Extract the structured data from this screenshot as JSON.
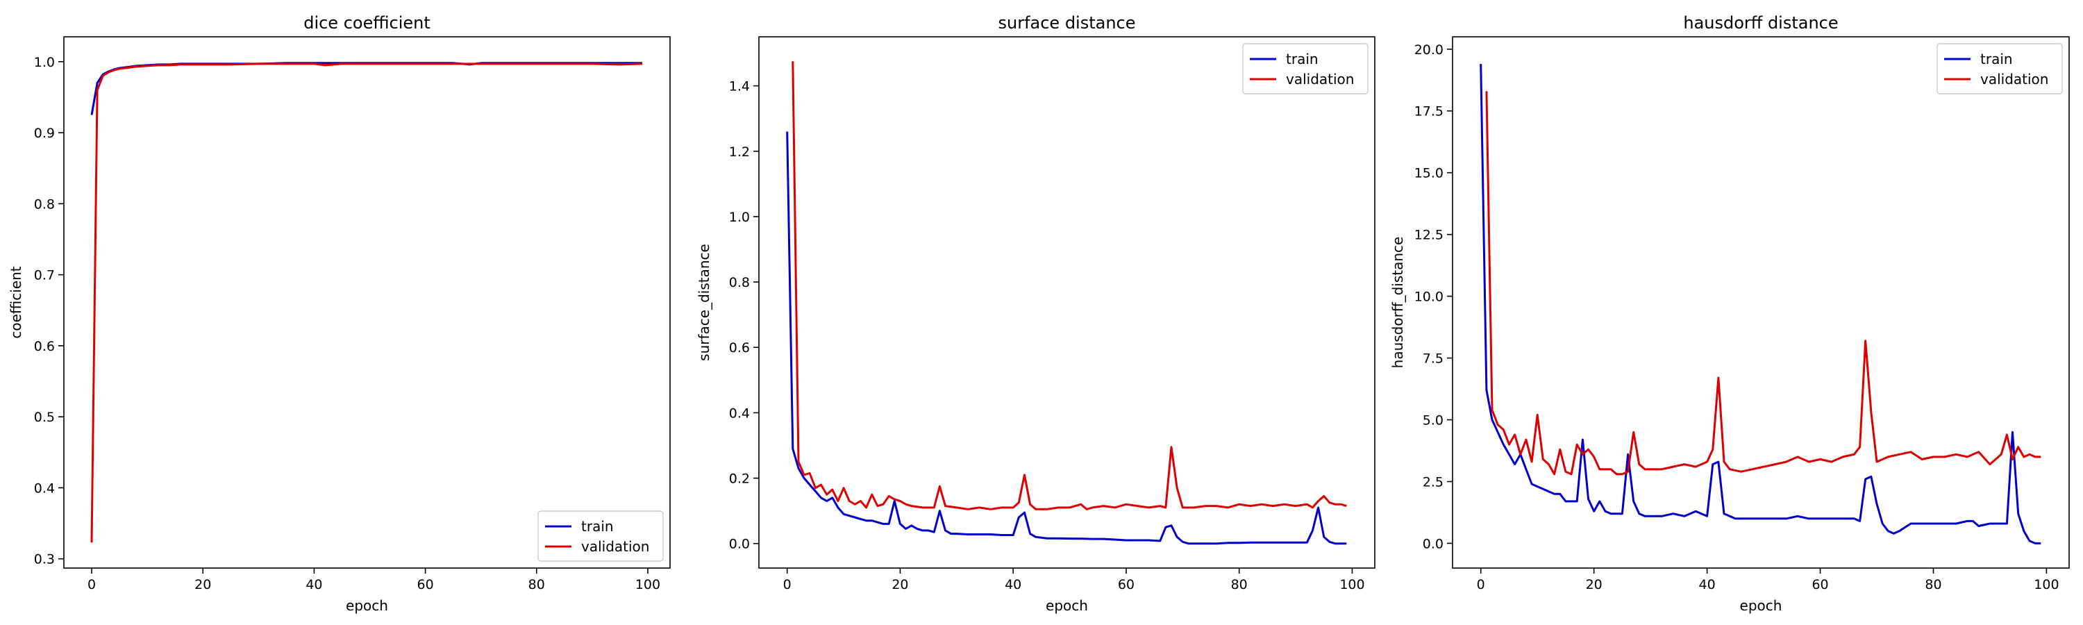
{
  "colors": {
    "train": "#0000cc",
    "validation": "#dd0000"
  },
  "chart_data": [
    {
      "type": "line",
      "title": "dice coefficient",
      "xlabel": "epoch",
      "ylabel": "coefficient",
      "xlim": [
        -5,
        104
      ],
      "ylim": [
        0.287,
        1.035
      ],
      "xticks": [
        0,
        20,
        40,
        60,
        80,
        100
      ],
      "yticks": [
        0.3,
        0.4,
        0.5,
        0.6,
        0.7,
        0.8,
        0.9,
        1.0
      ],
      "ytick_labels": [
        "0.3",
        "0.4",
        "0.5",
        "0.6",
        "0.7",
        "0.8",
        "0.9",
        "1.0"
      ],
      "grid": false,
      "legend": "lower-right",
      "series": [
        {
          "name": "train",
          "color": "#0000cc",
          "x": [
            0,
            1,
            2,
            3,
            4,
            5,
            6,
            7,
            8,
            10,
            12,
            14,
            16,
            18,
            20,
            25,
            30,
            35,
            40,
            45,
            50,
            55,
            60,
            65,
            68,
            70,
            75,
            80,
            85,
            90,
            95,
            99
          ],
          "y": [
            0.925,
            0.97,
            0.982,
            0.986,
            0.989,
            0.991,
            0.992,
            0.993,
            0.994,
            0.995,
            0.996,
            0.996,
            0.997,
            0.997,
            0.997,
            0.997,
            0.997,
            0.998,
            0.998,
            0.998,
            0.998,
            0.998,
            0.998,
            0.998,
            0.996,
            0.998,
            0.998,
            0.998,
            0.998,
            0.998,
            0.998,
            0.998
          ]
        },
        {
          "name": "validation",
          "color": "#dd0000",
          "x": [
            0,
            1,
            2,
            3,
            4,
            5,
            6,
            7,
            8,
            10,
            12,
            14,
            16,
            18,
            20,
            25,
            30,
            35,
            40,
            42,
            45,
            50,
            55,
            60,
            65,
            70,
            75,
            80,
            85,
            90,
            95,
            99
          ],
          "y": [
            0.323,
            0.96,
            0.98,
            0.985,
            0.988,
            0.99,
            0.991,
            0.992,
            0.993,
            0.994,
            0.995,
            0.995,
            0.996,
            0.996,
            0.996,
            0.996,
            0.997,
            0.997,
            0.997,
            0.995,
            0.997,
            0.997,
            0.997,
            0.997,
            0.997,
            0.997,
            0.997,
            0.997,
            0.997,
            0.997,
            0.996,
            0.997
          ]
        }
      ]
    },
    {
      "type": "line",
      "title": "surface distance",
      "xlabel": "epoch",
      "ylabel": "surface_distance",
      "xlim": [
        -5,
        104
      ],
      "ylim": [
        -0.075,
        1.55
      ],
      "xticks": [
        0,
        20,
        40,
        60,
        80,
        100
      ],
      "yticks": [
        0.0,
        0.2,
        0.4,
        0.6,
        0.8,
        1.0,
        1.2,
        1.4
      ],
      "ytick_labels": [
        "0.0",
        "0.2",
        "0.4",
        "0.6",
        "0.8",
        "1.0",
        "1.2",
        "1.4"
      ],
      "grid": false,
      "legend": "upper-right",
      "series": [
        {
          "name": "train",
          "color": "#0000cc",
          "x": [
            0,
            1,
            2,
            3,
            4,
            5,
            6,
            7,
            8,
            9,
            10,
            11,
            12,
            13,
            14,
            15,
            16,
            17,
            18,
            19,
            20,
            21,
            22,
            23,
            24,
            25,
            26,
            27,
            28,
            29,
            30,
            32,
            34,
            36,
            38,
            40,
            41,
            42,
            43,
            44,
            46,
            48,
            50,
            52,
            54,
            56,
            58,
            60,
            62,
            64,
            66,
            67,
            68,
            69,
            70,
            71,
            72,
            74,
            76,
            78,
            80,
            82,
            84,
            86,
            88,
            90,
            92,
            93,
            94,
            95,
            96,
            97,
            98,
            99
          ],
          "y": [
            1.26,
            0.29,
            0.23,
            0.2,
            0.18,
            0.16,
            0.14,
            0.13,
            0.14,
            0.11,
            0.09,
            0.085,
            0.08,
            0.075,
            0.07,
            0.07,
            0.065,
            0.06,
            0.06,
            0.13,
            0.06,
            0.045,
            0.055,
            0.045,
            0.04,
            0.04,
            0.035,
            0.1,
            0.04,
            0.03,
            0.03,
            0.028,
            0.028,
            0.028,
            0.026,
            0.026,
            0.08,
            0.095,
            0.03,
            0.02,
            0.016,
            0.016,
            0.015,
            0.015,
            0.014,
            0.014,
            0.012,
            0.01,
            0.01,
            0.01,
            0.008,
            0.05,
            0.055,
            0.02,
            0.005,
            0.0,
            0.0,
            0.0,
            0.0,
            0.002,
            0.002,
            0.003,
            0.003,
            0.003,
            0.003,
            0.003,
            0.003,
            0.04,
            0.11,
            0.02,
            0.005,
            0.0,
            0.0,
            0.0
          ]
        },
        {
          "name": "validation",
          "color": "#dd0000",
          "x": [
            1,
            2,
            3,
            4,
            5,
            6,
            7,
            8,
            9,
            10,
            11,
            12,
            13,
            14,
            15,
            16,
            17,
            18,
            19,
            20,
            21,
            22,
            24,
            26,
            27,
            28,
            30,
            32,
            34,
            36,
            38,
            40,
            41,
            42,
            43,
            44,
            46,
            48,
            50,
            52,
            53,
            54,
            56,
            58,
            60,
            62,
            64,
            66,
            67,
            68,
            69,
            70,
            72,
            74,
            76,
            78,
            80,
            82,
            84,
            86,
            88,
            90,
            92,
            93,
            94,
            95,
            96,
            97,
            98,
            99
          ],
          "y": [
            1.475,
            0.25,
            0.21,
            0.215,
            0.17,
            0.18,
            0.15,
            0.165,
            0.13,
            0.17,
            0.13,
            0.12,
            0.13,
            0.11,
            0.15,
            0.115,
            0.12,
            0.145,
            0.135,
            0.13,
            0.12,
            0.115,
            0.11,
            0.11,
            0.175,
            0.115,
            0.11,
            0.105,
            0.11,
            0.105,
            0.11,
            0.11,
            0.125,
            0.21,
            0.12,
            0.105,
            0.105,
            0.11,
            0.11,
            0.12,
            0.105,
            0.11,
            0.115,
            0.11,
            0.12,
            0.115,
            0.11,
            0.115,
            0.11,
            0.295,
            0.17,
            0.11,
            0.11,
            0.115,
            0.115,
            0.11,
            0.12,
            0.115,
            0.12,
            0.115,
            0.12,
            0.115,
            0.12,
            0.11,
            0.13,
            0.145,
            0.125,
            0.12,
            0.12,
            0.115
          ]
        }
      ]
    },
    {
      "type": "line",
      "title": "hausdorff distance",
      "xlabel": "epoch",
      "ylabel": "hausdorff_distance",
      "xlim": [
        -5,
        104
      ],
      "ylim": [
        -1.0,
        20.5
      ],
      "xticks": [
        0,
        20,
        40,
        60,
        80,
        100
      ],
      "yticks": [
        0.0,
        2.5,
        5.0,
        7.5,
        10.0,
        12.5,
        15.0,
        17.5,
        20.0
      ],
      "ytick_labels": [
        "0.0",
        "2.5",
        "5.0",
        "7.5",
        "10.0",
        "12.5",
        "15.0",
        "17.5",
        "20.0"
      ],
      "grid": false,
      "legend": "upper-right",
      "series": [
        {
          "name": "train",
          "color": "#0000cc",
          "x": [
            0,
            1,
            2,
            3,
            4,
            5,
            6,
            7,
            8,
            9,
            10,
            11,
            12,
            13,
            14,
            15,
            16,
            17,
            18,
            19,
            20,
            21,
            22,
            23,
            24,
            25,
            26,
            27,
            28,
            29,
            30,
            32,
            34,
            36,
            38,
            40,
            41,
            42,
            43,
            44,
            45,
            46,
            48,
            50,
            52,
            54,
            56,
            58,
            60,
            62,
            64,
            66,
            67,
            68,
            69,
            70,
            71,
            72,
            73,
            74,
            76,
            78,
            80,
            82,
            84,
            86,
            87,
            88,
            90,
            92,
            93,
            94,
            95,
            96,
            97,
            98,
            99
          ],
          "y": [
            19.4,
            6.2,
            5.0,
            4.5,
            4.0,
            3.6,
            3.2,
            3.6,
            3.0,
            2.4,
            2.3,
            2.2,
            2.1,
            2.0,
            2.0,
            1.7,
            1.7,
            1.7,
            4.2,
            1.8,
            1.3,
            1.7,
            1.3,
            1.2,
            1.2,
            1.2,
            3.6,
            1.7,
            1.2,
            1.1,
            1.1,
            1.1,
            1.2,
            1.1,
            1.3,
            1.1,
            3.2,
            3.3,
            1.2,
            1.1,
            1.0,
            1.0,
            1.0,
            1.0,
            1.0,
            1.0,
            1.1,
            1.0,
            1.0,
            1.0,
            1.0,
            1.0,
            0.9,
            2.6,
            2.7,
            1.6,
            0.8,
            0.5,
            0.4,
            0.5,
            0.8,
            0.8,
            0.8,
            0.8,
            0.8,
            0.9,
            0.9,
            0.7,
            0.8,
            0.8,
            0.8,
            4.5,
            1.2,
            0.5,
            0.1,
            0.0,
            0.0
          ]
        },
        {
          "name": "validation",
          "color": "#dd0000",
          "x": [
            1,
            2,
            3,
            4,
            5,
            6,
            7,
            8,
            9,
            10,
            11,
            12,
            13,
            14,
            15,
            16,
            17,
            18,
            19,
            20,
            21,
            22,
            23,
            24,
            25,
            26,
            27,
            28,
            29,
            30,
            32,
            34,
            36,
            38,
            40,
            41,
            42,
            43,
            44,
            46,
            48,
            50,
            52,
            54,
            56,
            58,
            60,
            62,
            64,
            66,
            67,
            68,
            69,
            70,
            72,
            74,
            76,
            78,
            80,
            82,
            84,
            86,
            88,
            90,
            92,
            93,
            94,
            95,
            96,
            97,
            98,
            99
          ],
          "y": [
            18.3,
            5.4,
            4.8,
            4.6,
            4.0,
            4.4,
            3.6,
            4.2,
            3.3,
            5.2,
            3.4,
            3.2,
            2.8,
            3.8,
            2.9,
            2.8,
            4.0,
            3.6,
            3.8,
            3.5,
            3.0,
            3.0,
            3.0,
            2.8,
            2.8,
            2.9,
            4.5,
            3.2,
            3.0,
            3.0,
            3.0,
            3.1,
            3.2,
            3.1,
            3.3,
            3.8,
            6.7,
            3.3,
            3.0,
            2.9,
            3.0,
            3.1,
            3.2,
            3.3,
            3.5,
            3.3,
            3.4,
            3.3,
            3.5,
            3.6,
            3.9,
            8.2,
            5.3,
            3.3,
            3.5,
            3.6,
            3.7,
            3.4,
            3.5,
            3.5,
            3.6,
            3.5,
            3.7,
            3.2,
            3.6,
            4.4,
            3.4,
            3.9,
            3.5,
            3.6,
            3.5,
            3.5
          ]
        }
      ]
    }
  ]
}
